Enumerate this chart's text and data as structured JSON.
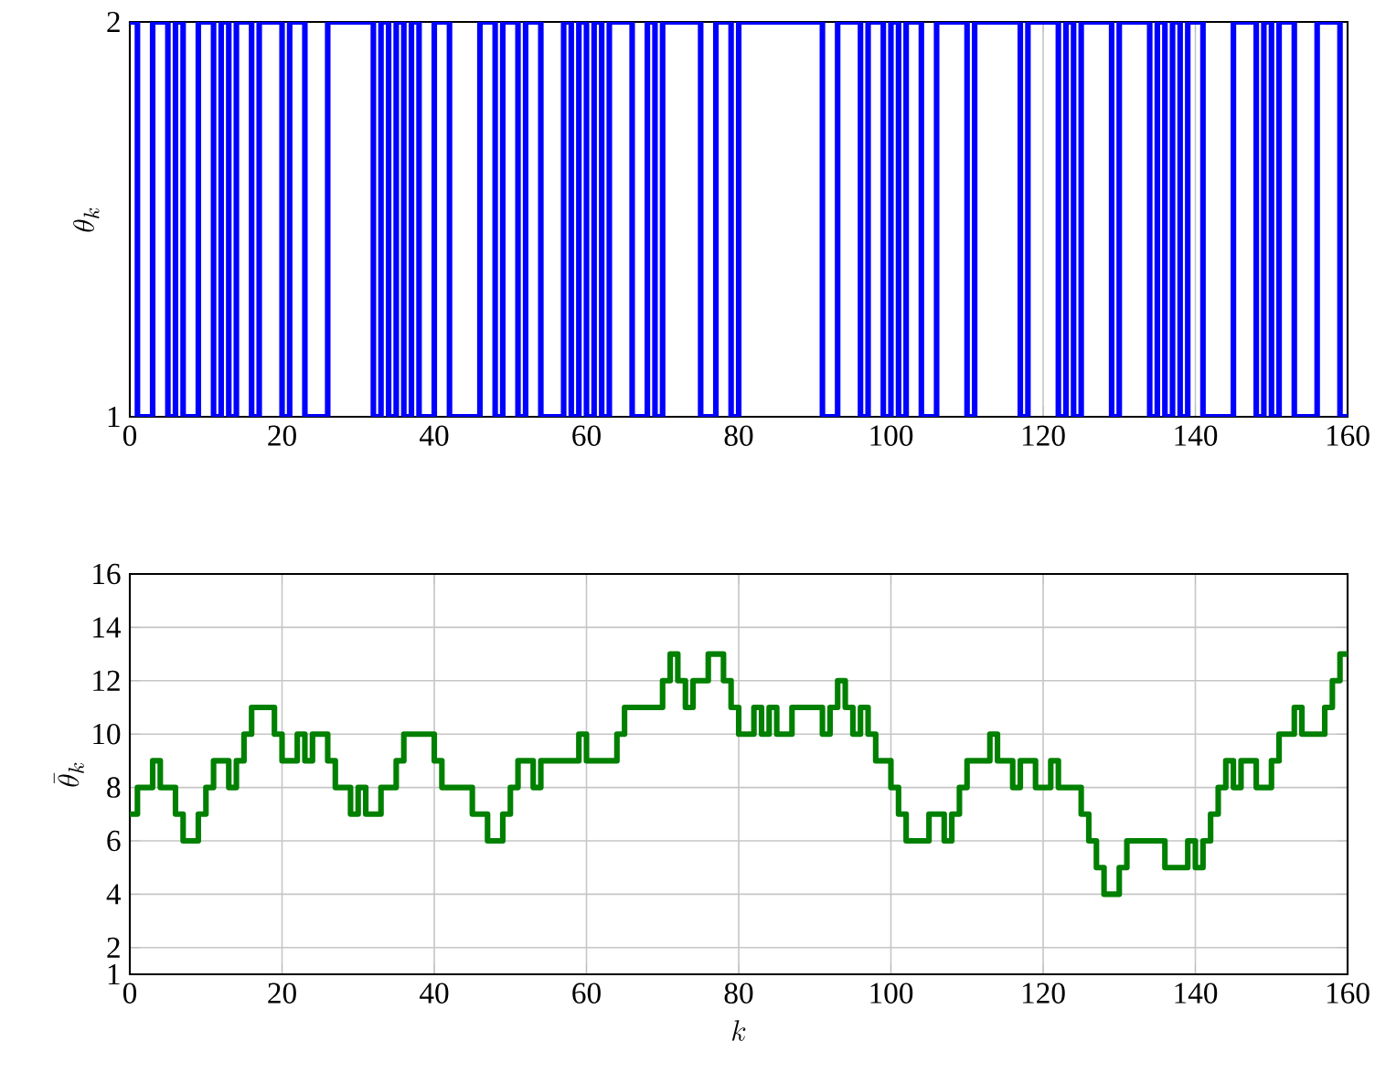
{
  "chart_data": [
    {
      "type": "step",
      "ylabel": "\\theta_k",
      "color": "#0000ff",
      "grid": true,
      "xlim": [
        0,
        160
      ],
      "ylim": [
        1,
        2
      ],
      "xticks": [
        0,
        20,
        40,
        60,
        80,
        100,
        120,
        140,
        160
      ],
      "yticks": [
        1,
        2
      ],
      "x": [
        0,
        1,
        3,
        5,
        6,
        7,
        9,
        11,
        12,
        13,
        14,
        16,
        17,
        20,
        21,
        23,
        26,
        32,
        33,
        34,
        35,
        36,
        37,
        38,
        40,
        42,
        46,
        48,
        49,
        51,
        52,
        54,
        57,
        58,
        59,
        60,
        61,
        62,
        63,
        66,
        68,
        69,
        70,
        75,
        77,
        79,
        80,
        91,
        93,
        96,
        97,
        99,
        100,
        101,
        102,
        104,
        106,
        110,
        111,
        117,
        118,
        122,
        123,
        124,
        125,
        129,
        130,
        134,
        135,
        136,
        137,
        138,
        139,
        141,
        145,
        148,
        149,
        150,
        151,
        153,
        156,
        159,
        160
      ],
      "values": [
        2,
        1,
        2,
        1,
        2,
        1,
        2,
        1,
        2,
        1,
        2,
        1,
        2,
        1,
        2,
        1,
        2,
        1,
        2,
        1,
        2,
        1,
        2,
        1,
        2,
        1,
        2,
        1,
        2,
        1,
        2,
        1,
        2,
        1,
        2,
        1,
        2,
        1,
        2,
        1,
        2,
        1,
        2,
        1,
        2,
        1,
        2,
        1,
        2,
        1,
        2,
        1,
        2,
        1,
        2,
        1,
        2,
        1,
        2,
        1,
        2,
        1,
        2,
        1,
        2,
        1,
        2,
        1,
        2,
        1,
        2,
        1,
        2,
        1,
        2,
        1,
        2,
        1,
        2,
        1,
        2,
        1,
        1
      ]
    },
    {
      "type": "step",
      "xlabel": "k",
      "ylabel": "\\bar{\\theta}_k",
      "color": "#008000",
      "grid": true,
      "xlim": [
        0,
        160
      ],
      "ylim": [
        1,
        16
      ],
      "xticks": [
        0,
        20,
        40,
        60,
        80,
        100,
        120,
        140,
        160
      ],
      "yticks": [
        1,
        2,
        4,
        6,
        8,
        10,
        12,
        14,
        16
      ],
      "x": [
        0,
        1,
        3,
        4,
        6,
        7,
        9,
        10,
        11,
        13,
        14,
        15,
        16,
        19,
        20,
        22,
        23,
        24,
        26,
        27,
        29,
        30,
        31,
        33,
        35,
        36,
        40,
        41,
        45,
        47,
        49,
        50,
        51,
        53,
        54,
        59,
        60,
        64,
        65,
        70,
        71,
        72,
        73,
        74,
        76,
        78,
        79,
        80,
        82,
        83,
        84,
        85,
        87,
        91,
        92,
        93,
        94,
        95,
        96,
        97,
        98,
        100,
        101,
        102,
        105,
        107,
        108,
        109,
        110,
        113,
        114,
        116,
        117,
        119,
        121,
        122,
        125,
        126,
        127,
        128,
        130,
        131,
        136,
        139,
        140,
        141,
        142,
        143,
        144,
        145,
        146,
        148,
        150,
        151,
        153,
        154,
        157,
        158,
        159,
        160
      ],
      "values": [
        7,
        8,
        9,
        8,
        7,
        6,
        7,
        8,
        9,
        8,
        9,
        10,
        11,
        10,
        9,
        10,
        9,
        10,
        9,
        8,
        7,
        8,
        7,
        8,
        9,
        10,
        9,
        8,
        7,
        6,
        7,
        8,
        9,
        8,
        9,
        10,
        9,
        10,
        11,
        12,
        13,
        12,
        11,
        12,
        13,
        12,
        11,
        10,
        11,
        10,
        11,
        10,
        11,
        10,
        11,
        12,
        11,
        10,
        11,
        10,
        9,
        8,
        7,
        6,
        7,
        6,
        7,
        8,
        9,
        10,
        9,
        8,
        9,
        8,
        9,
        8,
        7,
        6,
        5,
        4,
        5,
        6,
        5,
        6,
        5,
        6,
        7,
        8,
        9,
        8,
        9,
        8,
        9,
        10,
        11,
        10,
        11,
        12,
        13,
        13
      ]
    }
  ]
}
